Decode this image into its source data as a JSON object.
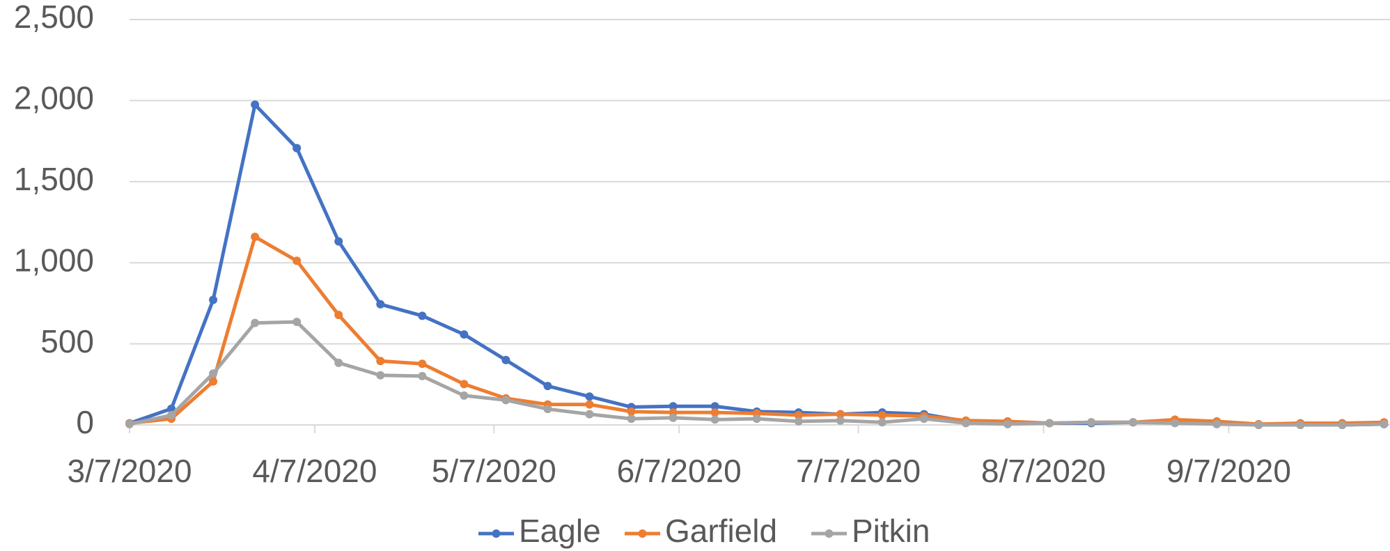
{
  "chart_data": {
    "type": "line",
    "x": [
      "3/7/2020",
      "3/14/2020",
      "3/21/2020",
      "3/28/2020",
      "4/4/2020",
      "4/11/2020",
      "4/18/2020",
      "4/25/2020",
      "5/2/2020",
      "5/9/2020",
      "5/16/2020",
      "5/23/2020",
      "5/30/2020",
      "6/6/2020",
      "6/13/2020",
      "6/20/2020",
      "6/27/2020",
      "7/4/2020",
      "7/11/2020",
      "7/18/2020",
      "7/25/2020",
      "8/1/2020",
      "8/8/2020",
      "8/15/2020",
      "8/22/2020",
      "8/29/2020",
      "9/5/2020",
      "9/12/2020",
      "9/19/2020",
      "9/26/2020",
      "10/3/2020"
    ],
    "series": [
      {
        "name": "Eagle",
        "color": "#4472c4",
        "values": [
          10,
          100,
          771,
          1975,
          1707,
          1132,
          744,
          673,
          558,
          400,
          240,
          175,
          110,
          115,
          115,
          82,
          77,
          66,
          77,
          66,
          22,
          16,
          11,
          11,
          16,
          16,
          11,
          0,
          0,
          0,
          5
        ]
      },
      {
        "name": "Garfield",
        "color": "#ed7d31",
        "values": [
          10,
          38,
          268,
          1160,
          1012,
          678,
          394,
          377,
          252,
          164,
          126,
          126,
          82,
          77,
          77,
          71,
          60,
          66,
          60,
          55,
          27,
          22,
          11,
          16,
          16,
          33,
          22,
          5,
          11,
          11,
          16
        ]
      },
      {
        "name": "Pitkin",
        "color": "#a5a5a5",
        "values": [
          5,
          60,
          317,
          629,
          635,
          383,
          306,
          301,
          181,
          153,
          98,
          66,
          38,
          44,
          33,
          38,
          22,
          27,
          16,
          38,
          11,
          5,
          11,
          16,
          16,
          11,
          5,
          0,
          0,
          0,
          5
        ]
      }
    ],
    "xlim": [
      "3/7/2020",
      "10/4/2020"
    ],
    "xticks": [
      "3/7/2020",
      "4/7/2020",
      "5/7/2020",
      "6/7/2020",
      "7/7/2020",
      "8/7/2020",
      "9/7/2020"
    ],
    "ylim": [
      0,
      2500
    ],
    "yticks": [
      0,
      500,
      {
        "value": 1000,
        "label": "1,000"
      },
      {
        "value": 1500,
        "label": "1,500"
      },
      {
        "value": 2000,
        "label": "2,000"
      },
      {
        "value": 2500,
        "label": "2,500"
      }
    ],
    "grid": true,
    "legend": "bottom"
  }
}
